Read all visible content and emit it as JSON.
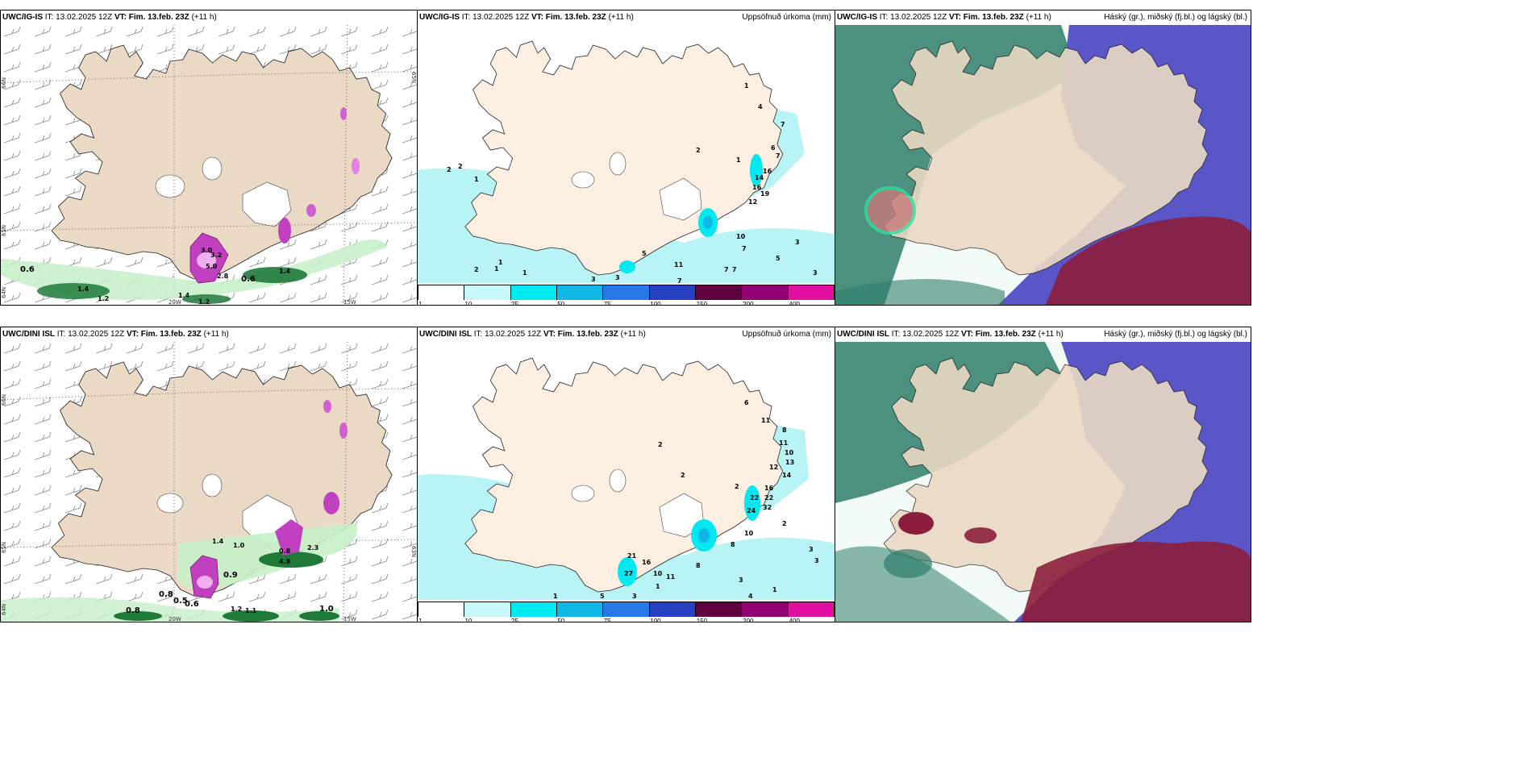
{
  "panels": {
    "p1": {
      "model": "UWC/IG-IS",
      "it": "IT: 13.02.2025 12Z",
      "vt": "VT: Fim. 13.feb. 23Z",
      "lead": "(+11 h)",
      "right_title": "",
      "labels": [
        "3.0",
        "3.2",
        "5.0",
        "2.8",
        "0.6",
        "0.6",
        "1.4",
        "1.2",
        "1.4",
        "1.4",
        "1.2"
      ],
      "axis": [
        "20W",
        "15W",
        "66N",
        "65N",
        "64N",
        "65N"
      ]
    },
    "p2": {
      "model": "UWC/IG-IS",
      "it": "IT: 13.02.2025 12Z",
      "vt": "VT: Fim. 13.feb. 23Z",
      "lead": "(+11 h)",
      "right_title": "Uppsöfnuð úrkoma (mm)",
      "labels": [
        "1",
        "4",
        "7",
        "6",
        "7",
        "2",
        "16",
        "14",
        "16",
        "19",
        "12",
        "10",
        "7",
        "5",
        "3",
        "5",
        "11",
        "7",
        "7",
        "3",
        "2",
        "2",
        "1",
        "1",
        "1",
        "1",
        "2",
        "3",
        "3",
        "7",
        "1"
      ]
    },
    "p3": {
      "model": "UWC/IG-IS",
      "it": "IT: 13.02.2025 12Z",
      "vt": "VT: Fim. 13.feb. 23Z",
      "lead": "(+11 h)",
      "right_title": "Háský (gr.), miðský (fj.bl.) og lágský (bl.)"
    },
    "p4": {
      "model": "UWC/DINI ISL",
      "it": "IT: 13.02.2025 12Z",
      "vt": "VT: Fim. 13.feb. 23Z",
      "lead": "(+11 h)",
      "right_title": "",
      "labels": [
        "1.4",
        "1.0",
        "0.8",
        "2.3",
        "4.9",
        "0.9",
        "0.8",
        "0.5",
        "0.6",
        "1.2",
        "1.1",
        "1.0",
        "0.8"
      ],
      "axis": [
        "20W",
        "15W",
        "66N",
        "65N",
        "64N",
        "63N"
      ]
    },
    "p5": {
      "model": "UWC/DINI ISL",
      "it": "IT: 13.02.2025 12Z",
      "vt": "VT: Fim. 13.feb. 23Z",
      "lead": "(+11 h)",
      "right_title": "Uppsöfnuð úrkoma (mm)",
      "labels": [
        "6",
        "11",
        "8",
        "11",
        "10",
        "13",
        "12",
        "14",
        "2",
        "2",
        "2",
        "16",
        "22",
        "22",
        "32",
        "24",
        "10",
        "8",
        "2",
        "3",
        "3",
        "21",
        "16",
        "27",
        "10",
        "11",
        "8",
        "3",
        "1",
        "5",
        "3",
        "4",
        "1",
        "1"
      ]
    },
    "p6": {
      "model": "UWC/DINI ISL",
      "it": "IT: 13.02.2025 12Z",
      "vt": "VT: Fim. 13.feb. 23Z",
      "lead": "(+11 h)",
      "right_title": "Háský (gr.), miðský (fj.bl.) og lágský (bl.)"
    }
  },
  "colorbar": {
    "ticks": [
      "1",
      "10",
      "25",
      "50",
      "75",
      "100",
      "150",
      "200",
      "400"
    ],
    "colors": [
      "#c8f8f8",
      "#00e8f0",
      "#10b8e8",
      "#2878e8",
      "#2840c0",
      "#600040",
      "#900070",
      "#e010a0",
      "#f0a0f0"
    ]
  },
  "colors": {
    "land": "#ead9c4",
    "land_precip": "#fdf0e2",
    "sea_precip": "#b8f4f6",
    "high_cloud": "#2e7d6b",
    "mid_cloud": "#5a56c8",
    "low_cloud": "#8c1e3c"
  }
}
